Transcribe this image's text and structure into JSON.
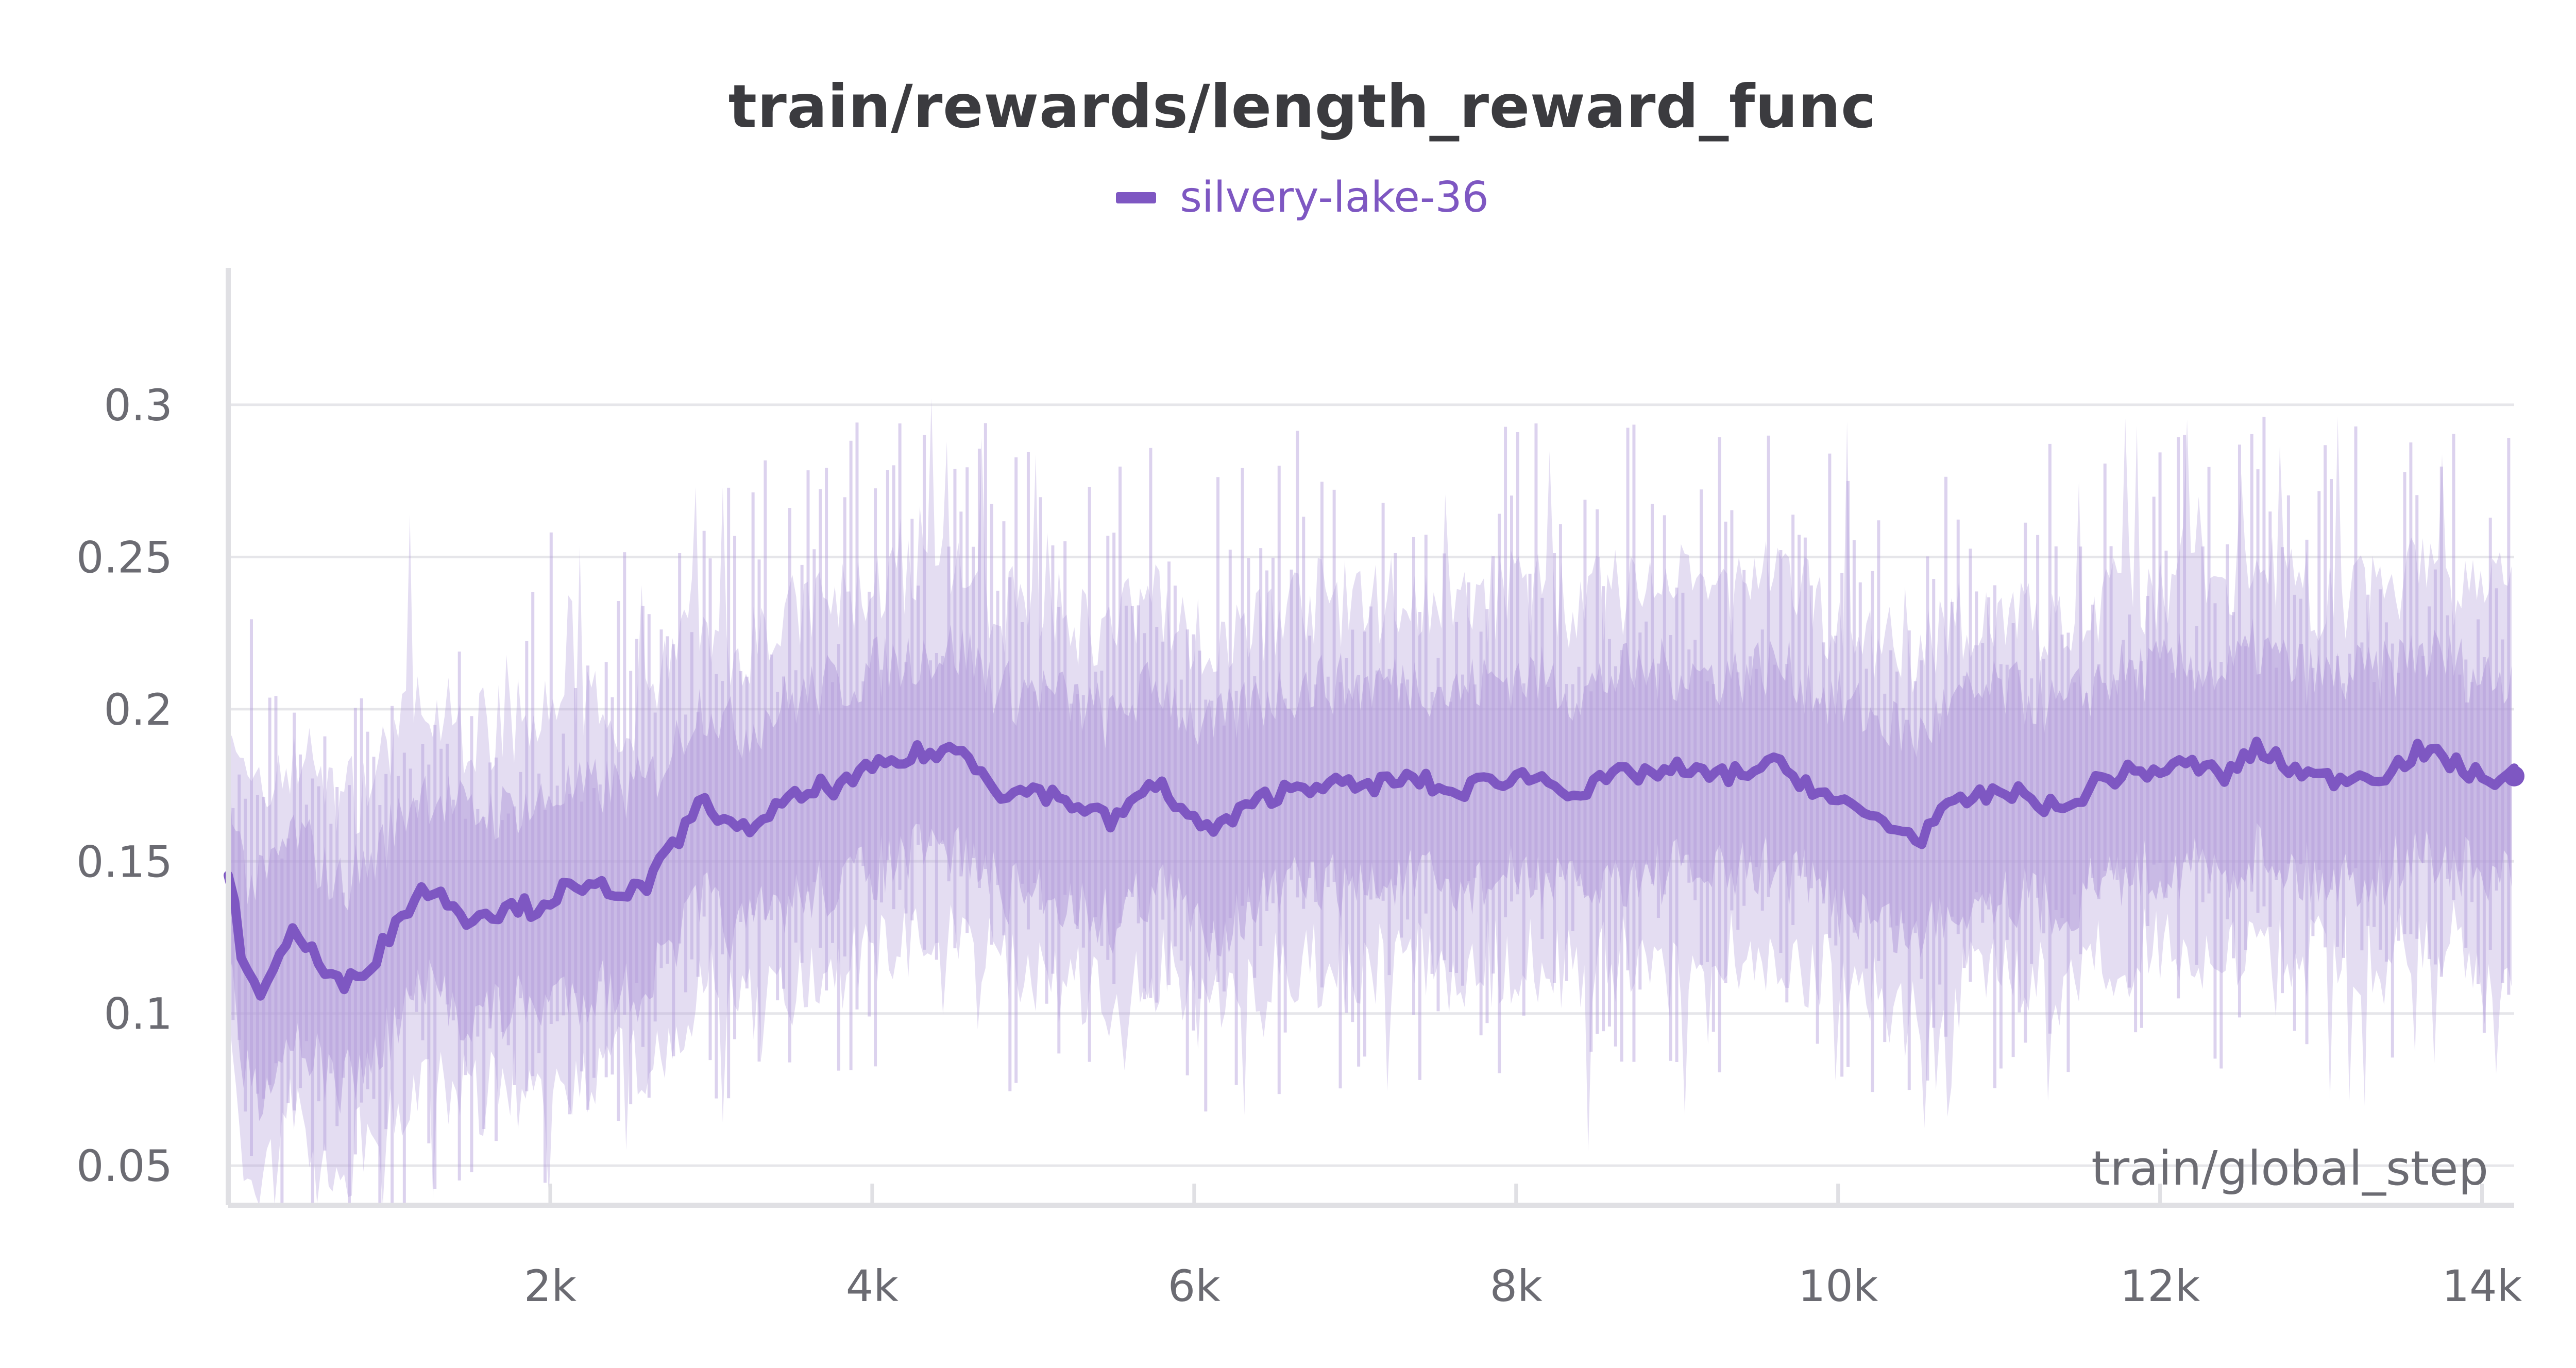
{
  "chart_data": {
    "type": "line",
    "title": "train/rewards/length_reward_func",
    "xlabel": "train/global_step",
    "ylabel": "",
    "xlim": [
      0,
      14200
    ],
    "ylim": [
      0.037,
      0.345
    ],
    "x_ticks": [
      2000,
      4000,
      6000,
      8000,
      10000,
      12000,
      14000
    ],
    "x_tick_labels": [
      "2k",
      "4k",
      "6k",
      "8k",
      "10k",
      "12k",
      "14k"
    ],
    "y_ticks": [
      0.05,
      0.1,
      0.15,
      0.2,
      0.25,
      0.3
    ],
    "y_tick_labels": [
      "0.05",
      "0.1",
      "0.15",
      "0.2",
      "0.25",
      "0.3"
    ],
    "grid": true,
    "legend_position": "top-center",
    "colors": {
      "smoothed": "#7e57c2",
      "band": "#b39ddb",
      "grid": "#e6e6ea",
      "axis": "#e0e0e4"
    },
    "series": [
      {
        "name": "silvery-lake-36",
        "x": [
          0,
          100,
          200,
          300,
          400,
          500,
          600,
          700,
          800,
          900,
          1000,
          1100,
          1200,
          1300,
          1400,
          1500,
          1600,
          1700,
          1800,
          1900,
          2000,
          2100,
          2200,
          2300,
          2400,
          2500,
          2600,
          2700,
          2800,
          2900,
          3000,
          3100,
          3200,
          3300,
          3400,
          3500,
          3600,
          3700,
          3800,
          3900,
          4000,
          4100,
          4200,
          4300,
          4400,
          4500,
          4600,
          4700,
          4800,
          4900,
          5000,
          5200,
          5400,
          5500,
          5600,
          5800,
          6000,
          6100,
          6200,
          6300,
          6400,
          6600,
          6800,
          7000,
          7200,
          7400,
          7600,
          7800,
          8000,
          8200,
          8400,
          8600,
          8800,
          9000,
          9200,
          9400,
          9600,
          9800,
          10000,
          10200,
          10400,
          10500,
          10600,
          10800,
          11000,
          11200,
          11400,
          11600,
          11800,
          12000,
          12200,
          12400,
          12600,
          12800,
          13000,
          13200,
          13400,
          13600,
          13800,
          14000,
          14200
        ],
        "values": [
          0.148,
          0.113,
          0.108,
          0.117,
          0.127,
          0.122,
          0.113,
          0.109,
          0.114,
          0.117,
          0.126,
          0.134,
          0.141,
          0.139,
          0.136,
          0.131,
          0.134,
          0.133,
          0.136,
          0.134,
          0.138,
          0.141,
          0.139,
          0.142,
          0.141,
          0.14,
          0.142,
          0.15,
          0.157,
          0.168,
          0.169,
          0.161,
          0.16,
          0.164,
          0.167,
          0.17,
          0.172,
          0.175,
          0.174,
          0.178,
          0.18,
          0.182,
          0.183,
          0.186,
          0.185,
          0.187,
          0.185,
          0.179,
          0.173,
          0.172,
          0.174,
          0.17,
          0.166,
          0.162,
          0.17,
          0.175,
          0.163,
          0.16,
          0.163,
          0.166,
          0.17,
          0.174,
          0.176,
          0.174,
          0.176,
          0.177,
          0.172,
          0.176,
          0.178,
          0.177,
          0.172,
          0.178,
          0.179,
          0.18,
          0.178,
          0.179,
          0.182,
          0.176,
          0.169,
          0.165,
          0.16,
          0.157,
          0.164,
          0.17,
          0.173,
          0.171,
          0.166,
          0.176,
          0.179,
          0.18,
          0.182,
          0.178,
          0.187,
          0.181,
          0.177,
          0.178,
          0.179,
          0.186,
          0.183,
          0.177,
          0.178
        ]
      }
    ]
  }
}
